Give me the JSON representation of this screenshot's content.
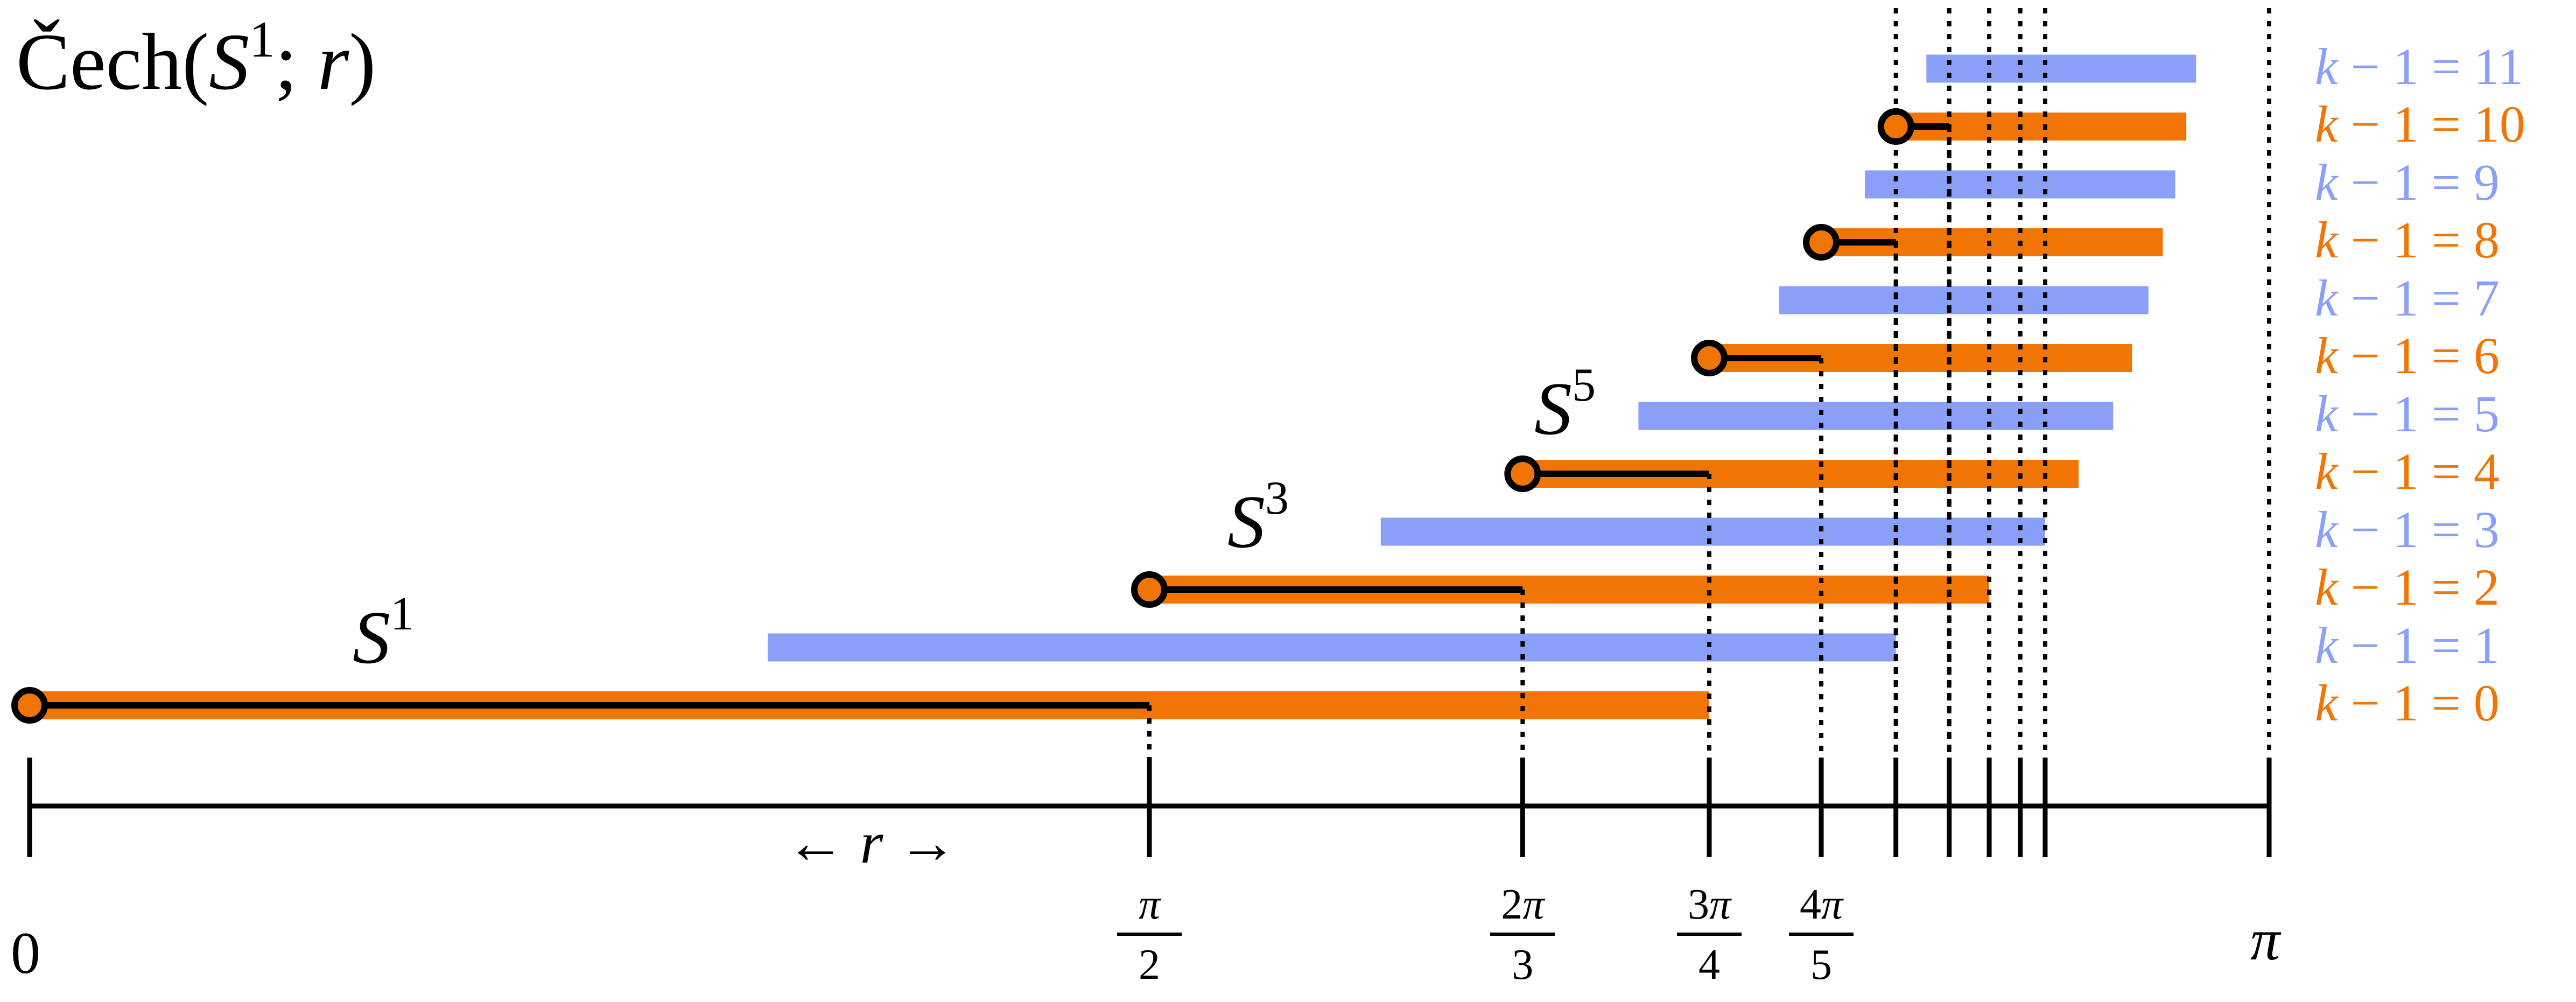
{
  "title": {
    "prefix": "Čech(",
    "space": "S",
    "space_exp": "1",
    "sep": "; ",
    "param": "r",
    "suffix": ")"
  },
  "colors": {
    "even": "#f07505",
    "odd": "#8aa0f8",
    "line": "#000000"
  },
  "axis": {
    "zero_label": "0",
    "pi_label": "π",
    "r_label": "r",
    "arrow_left": "←",
    "arrow_right": "→"
  },
  "fractions": [
    {
      "num": "π",
      "den": "2",
      "value": 1.5708
    },
    {
      "num": "2π",
      "den": "3",
      "value": 2.0944
    },
    {
      "num": "3π",
      "den": "4",
      "value": 2.3562
    },
    {
      "num": "4π",
      "den": "5",
      "value": 2.5133
    }
  ],
  "extra_ticks": [
    2.618,
    2.6928,
    2.7489,
    2.7925,
    2.8274
  ],
  "spheres": [
    {
      "base": "S",
      "exp": "1"
    },
    {
      "base": "S",
      "exp": "3"
    },
    {
      "base": "S",
      "exp": "5"
    }
  ],
  "bars": [
    {
      "k": 0,
      "label_k": "k",
      "label_rest": " − 1 = 0",
      "start": 0.0,
      "end": 2.3562,
      "birth": 0.0,
      "death": 1.5708
    },
    {
      "k": 1,
      "label_k": "k",
      "label_rest": " − 1 = 1",
      "start": 1.0354,
      "end": 2.618
    },
    {
      "k": 2,
      "label_k": "k",
      "label_rest": " − 1 = 2",
      "start": 1.5708,
      "end": 2.7489,
      "birth": 1.5708,
      "death": 2.0944
    },
    {
      "k": 3,
      "label_k": "k",
      "label_rest": " − 1 = 3",
      "start": 1.8954,
      "end": 2.8274
    },
    {
      "k": 4,
      "label_k": "k",
      "label_rest": " − 1 = 4",
      "start": 2.0944,
      "end": 2.8744,
      "birth": 2.0944,
      "death": 2.3562
    },
    {
      "k": 5,
      "label_k": "k",
      "label_rest": " − 1 = 5",
      "start": 2.2568,
      "end": 2.9228
    },
    {
      "k": 6,
      "label_k": "k",
      "label_rest": " − 1 = 6",
      "start": 2.3562,
      "end": 2.9493,
      "birth": 2.3562,
      "death": 2.5133
    },
    {
      "k": 7,
      "label_k": "k",
      "label_rest": " − 1 = 7",
      "start": 2.4544,
      "end": 2.9723
    },
    {
      "k": 8,
      "label_k": "k",
      "label_rest": " − 1 = 8",
      "start": 2.5133,
      "end": 2.9924,
      "birth": 2.5133,
      "death": 2.618
    },
    {
      "k": 9,
      "label_k": "k",
      "label_rest": " − 1 = 9",
      "start": 2.5745,
      "end": 3.0099
    },
    {
      "k": 10,
      "label_k": "k",
      "label_rest": " − 1 = 10",
      "start": 2.618,
      "end": 3.0254,
      "birth": 2.618,
      "death": 2.6928
    },
    {
      "k": 11,
      "label_k": "k",
      "label_rest": " − 1 = 11",
      "start": 2.6608,
      "end": 3.0391
    }
  ]
}
